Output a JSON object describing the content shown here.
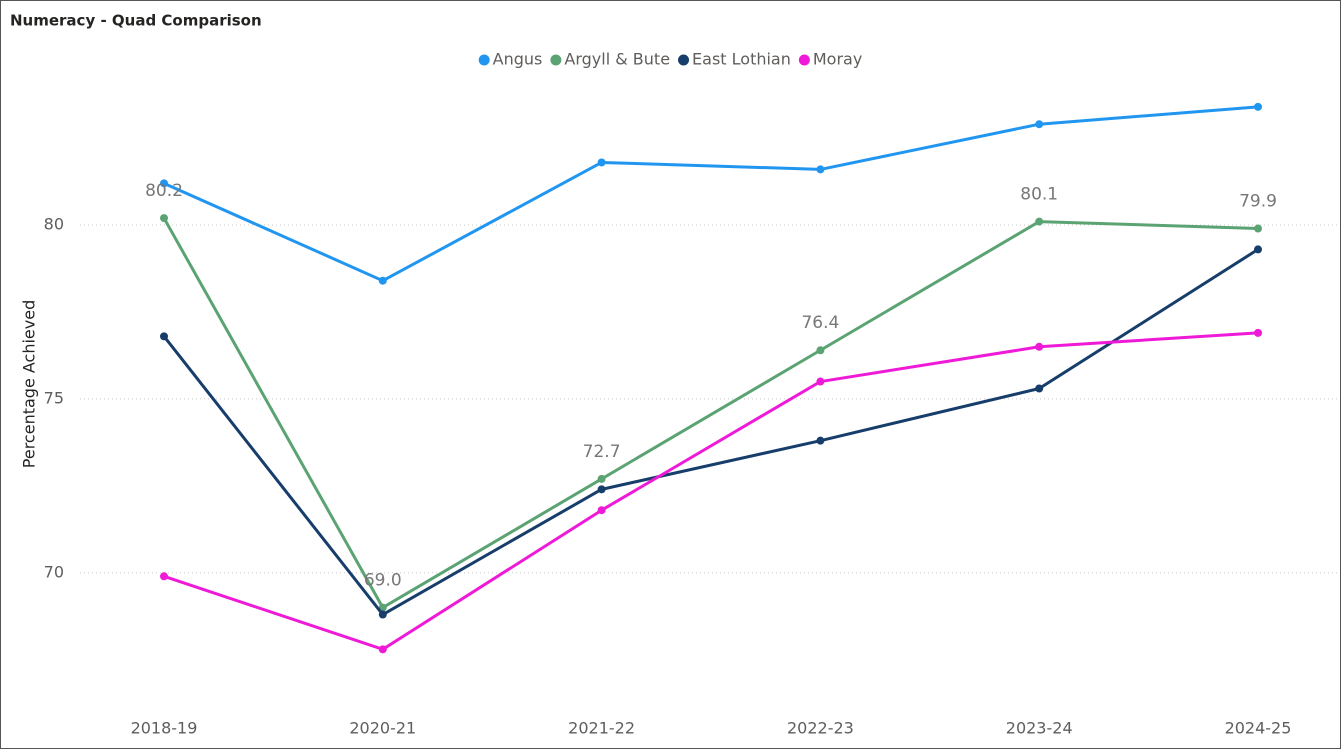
{
  "chart_data": {
    "type": "line",
    "title": "Numeracy - Quad Comparison",
    "y_label": "Percentage Achieved",
    "categories": [
      "2018-19",
      "2020-21",
      "2021-22",
      "2022-23",
      "2023-24",
      "2024-25"
    ],
    "series": [
      {
        "name": "Angus",
        "color": "#2196f0",
        "values": [
          81.2,
          78.4,
          81.8,
          81.6,
          82.9,
          83.4
        ]
      },
      {
        "name": "Argyll & Bute",
        "color": "#5ba373",
        "values": [
          80.2,
          69.0,
          72.7,
          76.4,
          80.1,
          79.9
        ],
        "value_labels": [
          "80.2",
          "69.0",
          "72.7",
          "76.4",
          "80.1",
          "79.9"
        ]
      },
      {
        "name": "East Lothian",
        "color": "#173d6b",
        "values": [
          76.8,
          68.8,
          72.4,
          73.8,
          75.3,
          79.3
        ]
      },
      {
        "name": "Moray",
        "color": "#ef1ad8",
        "values": [
          69.9,
          67.8,
          71.8,
          75.5,
          76.5,
          76.9
        ]
      }
    ],
    "ylim": [
      66.4,
      84.2
    ],
    "yticks": [
      70,
      75,
      80
    ],
    "grid": true,
    "legend": "top"
  }
}
